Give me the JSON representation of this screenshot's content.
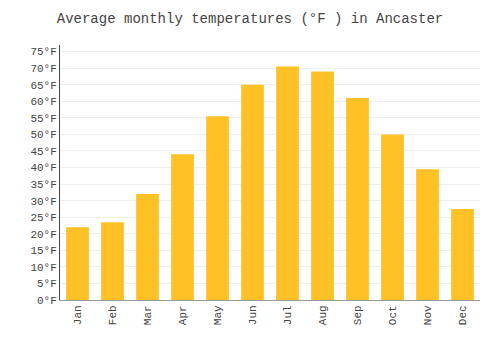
{
  "chart_data": {
    "type": "bar",
    "title": "Average monthly temperatures (°F ) in Ancaster",
    "categories": [
      "Jan",
      "Feb",
      "Mar",
      "Apr",
      "May",
      "Jun",
      "Jul",
      "Aug",
      "Sep",
      "Oct",
      "Nov",
      "Dec"
    ],
    "values": [
      22,
      23.5,
      32,
      44,
      55.5,
      65,
      70.5,
      69,
      61,
      50,
      39.5,
      27.5
    ],
    "color": "#FFC125",
    "ylim": [
      0,
      77
    ],
    "yticks": [
      {
        "value": 0,
        "label": "0°F"
      },
      {
        "value": 5,
        "label": "5°F"
      },
      {
        "value": 10,
        "label": "10°F"
      },
      {
        "value": 15,
        "label": "15°F"
      },
      {
        "value": 20,
        "label": "20°F"
      },
      {
        "value": 25,
        "label": "25°F"
      },
      {
        "value": 30,
        "label": "30°F"
      },
      {
        "value": 35,
        "label": "35°F"
      },
      {
        "value": 40,
        "label": "40°F"
      },
      {
        "value": 45,
        "label": "45°F"
      },
      {
        "value": 50,
        "label": "50°F"
      },
      {
        "value": 55,
        "label": "55°F"
      },
      {
        "value": 60,
        "label": "60°F"
      },
      {
        "value": 65,
        "label": "65°F"
      },
      {
        "value": 70,
        "label": "70°F"
      },
      {
        "value": 75,
        "label": "75°F"
      }
    ],
    "grid": true
  }
}
